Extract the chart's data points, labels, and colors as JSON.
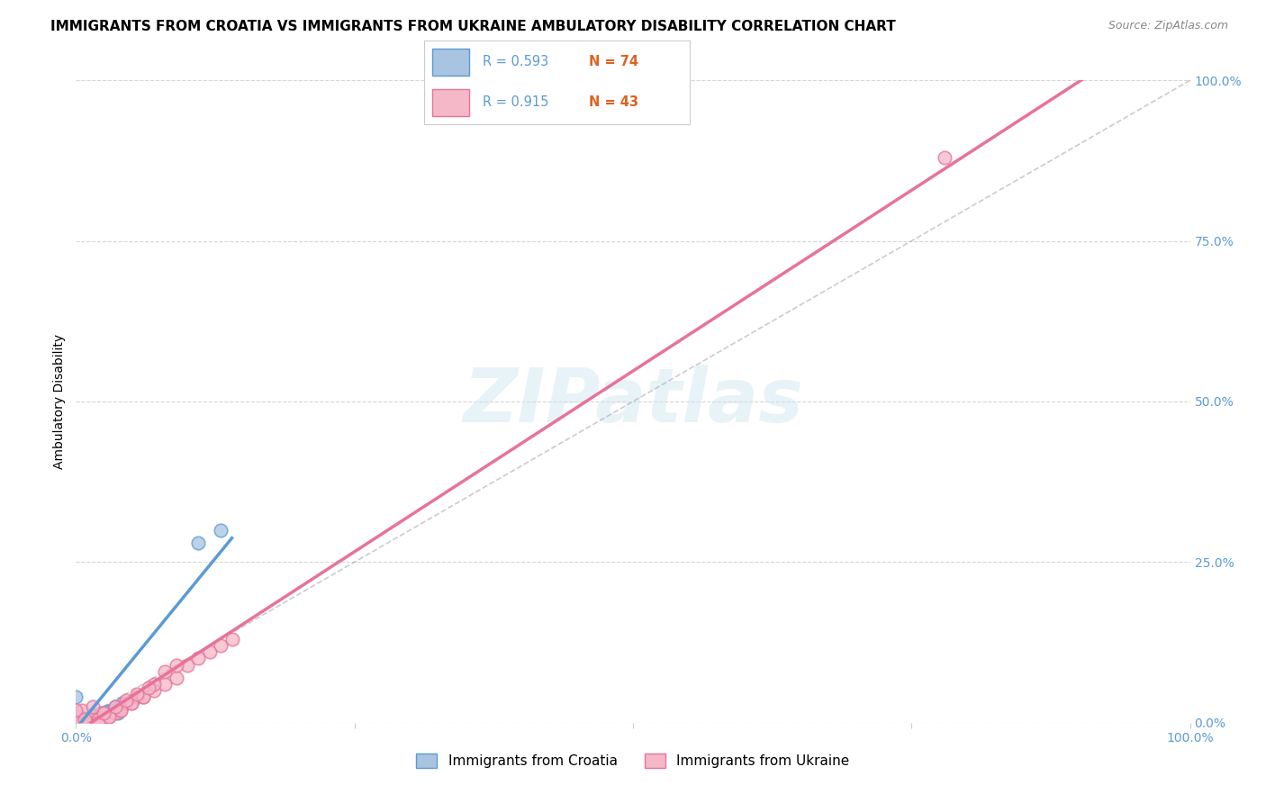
{
  "title": "IMMIGRANTS FROM CROATIA VS IMMIGRANTS FROM UKRAINE AMBULATORY DISABILITY CORRELATION CHART",
  "source_text": "Source: ZipAtlas.com",
  "ylabel": "Ambulatory Disability",
  "legend_entries": [
    {
      "label": "Immigrants from Croatia",
      "color": "#a8c4e0",
      "edge": "#5b9bd5"
    },
    {
      "label": "Immigrants from Ukraine",
      "color": "#f4b8c8",
      "edge": "#e8729a"
    }
  ],
  "R_croatia": 0.593,
  "N_croatia": 74,
  "R_ukraine": 0.915,
  "N_ukraine": 43,
  "xlim": [
    0,
    1.0
  ],
  "ylim": [
    0,
    1.0
  ],
  "ytick_labels_right": [
    "0.0%",
    "25.0%",
    "50.0%",
    "75.0%",
    "100.0%"
  ],
  "background_color": "#ffffff",
  "grid_color": "#cccccc",
  "watermark": "ZIPatlas",
  "croatia_scatter_x": [
    0.0,
    0.0,
    0.005,
    0.008,
    0.003,
    0.012,
    0.015,
    0.018,
    0.022,
    0.025,
    0.028,
    0.032,
    0.035,
    0.038,
    0.042,
    0.0,
    0.005,
    0.0,
    0.008,
    0.003,
    0.012,
    0.015,
    0.018,
    0.0,
    0.0,
    0.002,
    0.001,
    0.003,
    0.002,
    0.004,
    0.003,
    0.005,
    0.004,
    0.006,
    0.005,
    0.007,
    0.006,
    0.008,
    0.0,
    0.001,
    0.0,
    0.002,
    0.001,
    0.003,
    0.002,
    0.004,
    0.003,
    0.005,
    0.004,
    0.006,
    0.005,
    0.007,
    0.006,
    0.008,
    0.0,
    0.001,
    0.0,
    0.002,
    0.001,
    0.003,
    0.002,
    0.004,
    0.003,
    0.005,
    0.004,
    0.007,
    0.006,
    0.009,
    0.01,
    0.008,
    0.012,
    0.11,
    0.13,
    0.015
  ],
  "croatia_scatter_y": [
    0.0,
    0.003,
    0.0,
    0.003,
    0.008,
    0.005,
    0.012,
    0.008,
    0.015,
    0.01,
    0.018,
    0.02,
    0.025,
    0.015,
    0.03,
    0.04,
    0.0,
    0.005,
    0.003,
    0.008,
    0.005,
    0.012,
    0.008,
    0.0,
    0.0,
    0.001,
    0.002,
    0.002,
    0.003,
    0.002,
    0.004,
    0.003,
    0.005,
    0.003,
    0.006,
    0.004,
    0.007,
    0.005,
    0.0,
    0.0,
    0.001,
    0.001,
    0.002,
    0.002,
    0.003,
    0.002,
    0.004,
    0.003,
    0.005,
    0.003,
    0.006,
    0.004,
    0.007,
    0.005,
    0.0,
    0.0,
    0.001,
    0.001,
    0.002,
    0.002,
    0.003,
    0.002,
    0.004,
    0.003,
    0.005,
    0.004,
    0.007,
    0.005,
    0.0,
    0.005,
    0.008,
    0.28,
    0.3,
    0.01
  ],
  "ukraine_scatter_x": [
    0.0,
    0.005,
    0.01,
    0.015,
    0.02,
    0.025,
    0.03,
    0.035,
    0.04,
    0.045,
    0.05,
    0.055,
    0.06,
    0.07,
    0.08,
    0.09,
    0.1,
    0.12,
    0.14,
    0.0,
    0.01,
    0.02,
    0.005,
    0.03,
    0.04,
    0.05,
    0.06,
    0.07,
    0.08,
    0.09,
    0.11,
    0.13,
    0.0,
    0.02,
    0.025,
    0.015,
    0.035,
    0.045,
    0.0,
    0.008,
    0.78,
    0.055,
    0.065
  ],
  "ukraine_scatter_y": [
    0.0,
    0.0,
    0.005,
    0.01,
    0.005,
    0.015,
    0.01,
    0.015,
    0.02,
    0.03,
    0.03,
    0.04,
    0.04,
    0.05,
    0.06,
    0.07,
    0.09,
    0.11,
    0.13,
    0.015,
    0.0,
    0.005,
    0.02,
    0.01,
    0.02,
    0.03,
    0.04,
    0.06,
    0.08,
    0.09,
    0.1,
    0.12,
    0.02,
    0.0,
    0.015,
    0.025,
    0.025,
    0.035,
    0.0,
    0.005,
    0.88,
    0.045,
    0.055
  ],
  "croatia_line_color": "#5b9bd5",
  "ukraine_line_color": "#e8729a",
  "diagonal_line_color": "#aaaaaa",
  "title_fontsize": 11,
  "axis_label_fontsize": 10,
  "tick_fontsize": 10,
  "legend_fontsize": 11,
  "stats_R_color": "#5b9bd5",
  "stats_N_color": "#e06020"
}
